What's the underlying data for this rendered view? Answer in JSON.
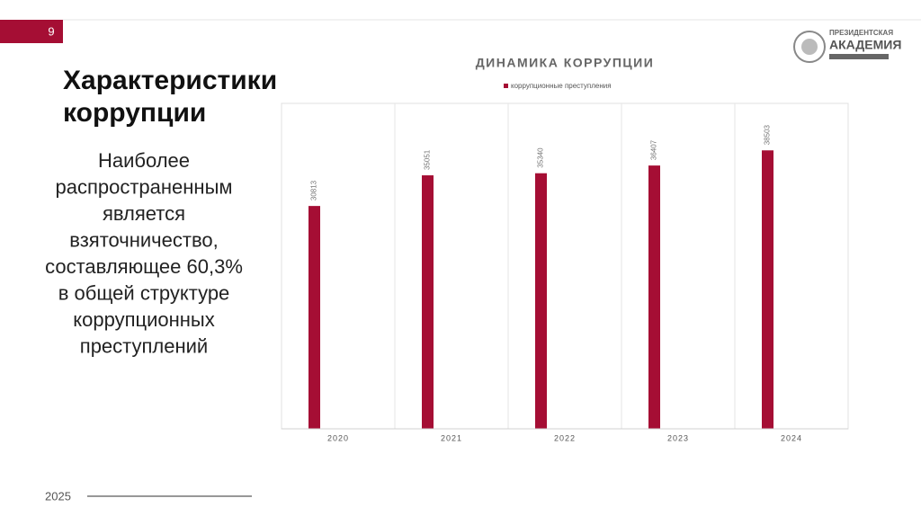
{
  "slide": {
    "number": "9",
    "title": [
      "Характеристики",
      "коррупции"
    ],
    "body": [
      "Наиболее",
      "распространенным",
      "является",
      "взяточничество,",
      "составляющее 60,3%",
      "в общей структуре",
      "коррупционных",
      "преступлений"
    ],
    "logo": [
      "ПРЕЗИДЕНТСКАЯ",
      "АКАДЕМИЯ"
    ],
    "footer": "2025"
  },
  "chart_data": {
    "type": "bar",
    "title": "ДИНАМИКА КОРРУПЦИИ",
    "categories": [
      "2020",
      "2021",
      "2022",
      "2023",
      "2024"
    ],
    "series": [
      {
        "name": "коррупционные преступления",
        "color": "#a50e34",
        "values": [
          30813,
          35051,
          35340,
          36407,
          38503
        ]
      }
    ],
    "ylim": [
      0,
      45000
    ],
    "legend": "top",
    "data_labels": true
  }
}
